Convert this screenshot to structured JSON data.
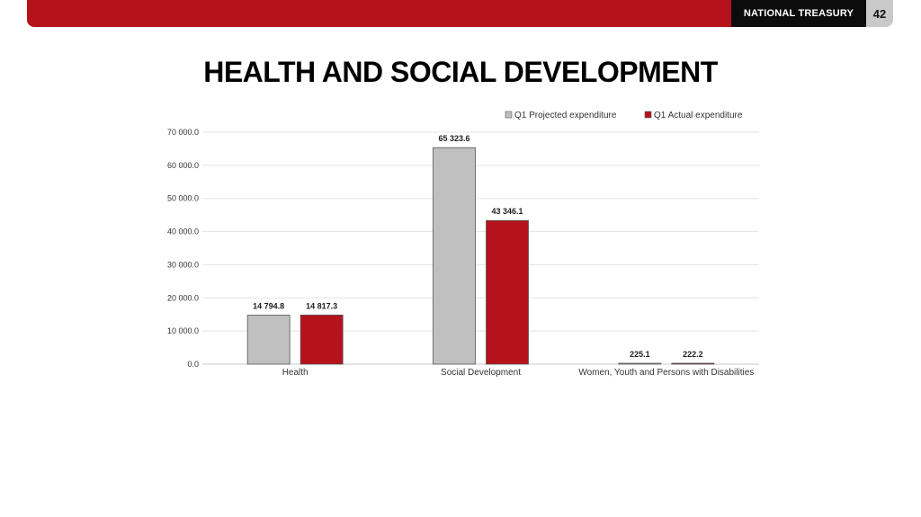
{
  "header": {
    "brand": "NATIONAL TREASURY",
    "page_number": "42",
    "accent_color": "#b5121b"
  },
  "title": "HEALTH AND SOCIAL DEVELOPMENT",
  "chart_data": {
    "type": "bar",
    "categories": [
      "Health",
      "Social Development",
      "Women, Youth and Persons with Disabilities"
    ],
    "series": [
      {
        "name": "Q1 Projected expenditure",
        "color": "#c0c0c0",
        "values": [
          14794.8,
          65323.6,
          225.1
        ],
        "labels": [
          "14 794.8",
          "65 323.6",
          "225.1"
        ]
      },
      {
        "name": "Q1 Actual expenditure",
        "color": "#b5121b",
        "values": [
          14817.3,
          43346.1,
          222.2
        ],
        "labels": [
          "14 817.3",
          "43 346.1",
          "222.2"
        ]
      }
    ],
    "ylim": [
      0,
      70000
    ],
    "yticks": [
      0,
      10000,
      20000,
      30000,
      40000,
      50000,
      60000,
      70000
    ],
    "ytick_labels": [
      "0.0",
      "10 000.0",
      "20 000.0",
      "30 000.0",
      "40 000.0",
      "50 000.0",
      "60 000.0",
      "70 000.0"
    ],
    "grid": true,
    "legend": "top-right"
  }
}
